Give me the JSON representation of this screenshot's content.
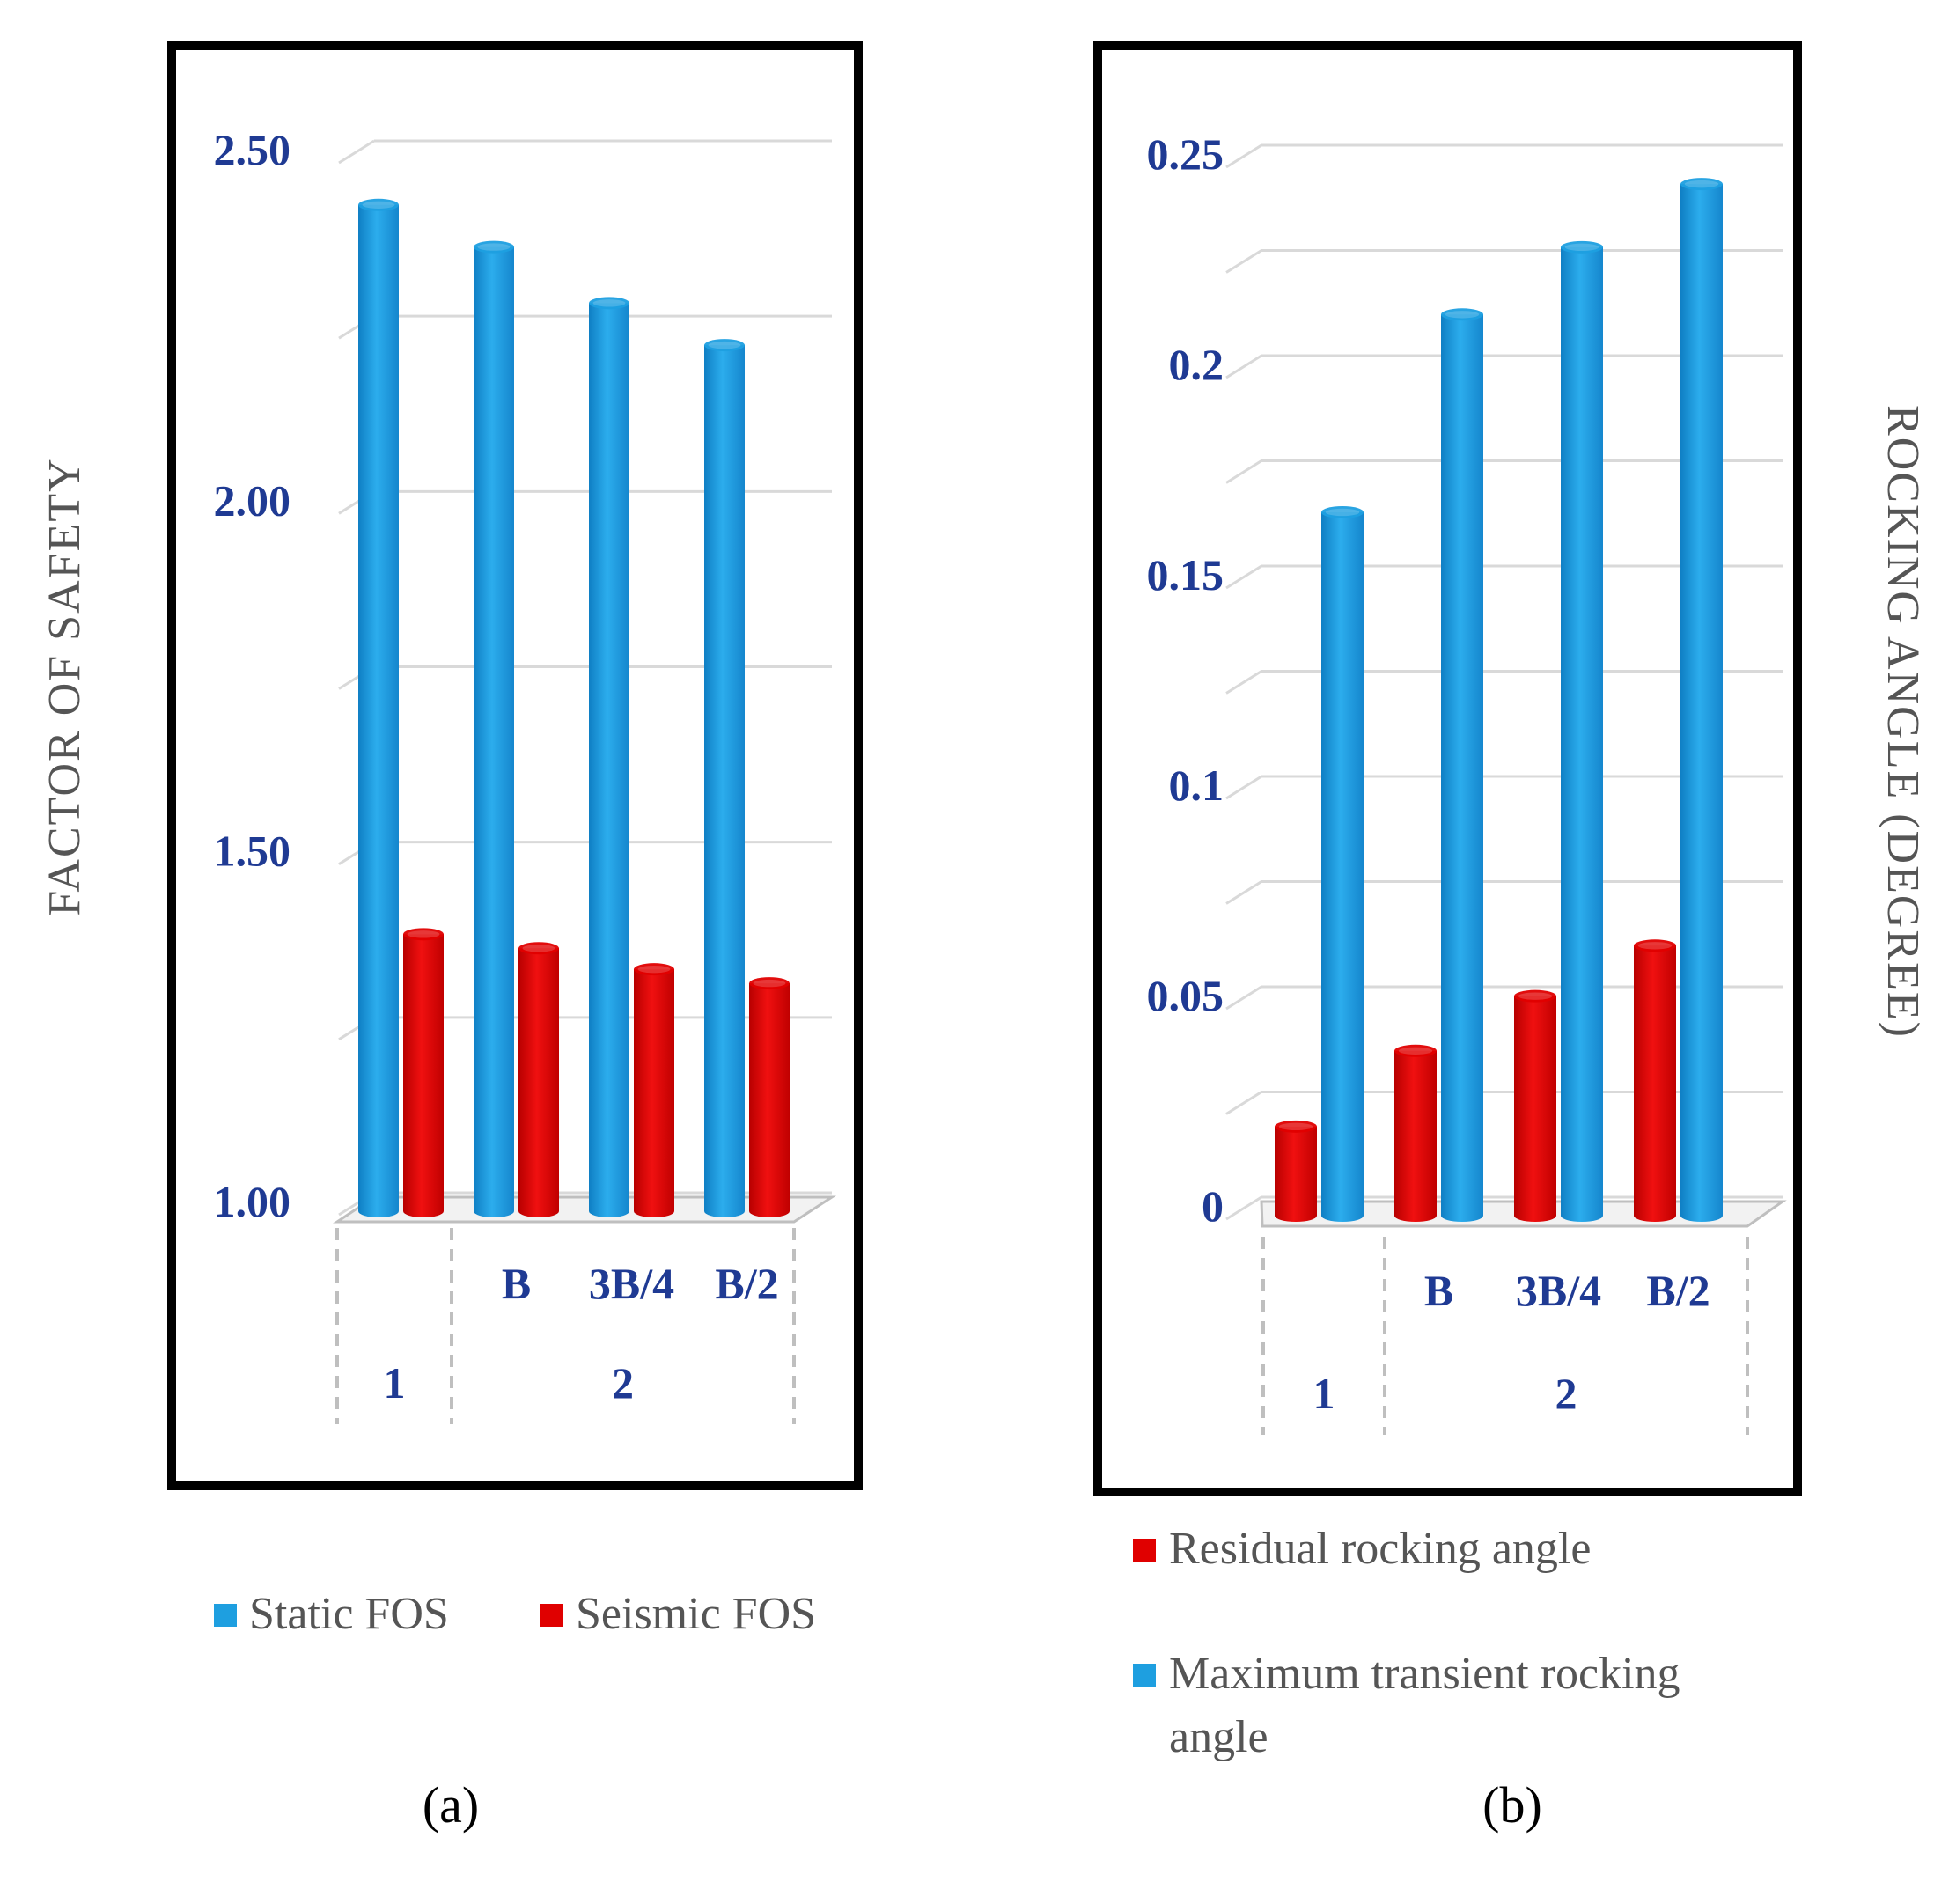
{
  "colors": {
    "static": "#1E9FE0",
    "seismic": "#E00000",
    "frame": "#000000",
    "grid": "#D9D9D9",
    "tick": "#1F3A93",
    "text": "#555555"
  },
  "chart_data": [
    {
      "type": "bar",
      "panel_label": "(a)",
      "ylabel": "FACTOR OF SAFETY",
      "ylim": [
        1.0,
        2.5
      ],
      "yticks": [
        "1.00",
        "1.50",
        "2.00",
        "2.50"
      ],
      "ytick_values": [
        1.0,
        1.5,
        2.0,
        2.5
      ],
      "categories": [
        "1",
        "B",
        "3B/4",
        "B/2"
      ],
      "category_groups": [
        {
          "label": "1",
          "members": [
            "1"
          ]
        },
        {
          "label": "2",
          "members": [
            "B",
            "3B/4",
            "B/2"
          ]
        }
      ],
      "series": [
        {
          "name": "Static FOS",
          "color": "#1E9FE0",
          "values": [
            2.44,
            2.38,
            2.3,
            2.24
          ]
        },
        {
          "name": "Seismic FOS",
          "color": "#E00000",
          "values": [
            1.4,
            1.38,
            1.35,
            1.33
          ]
        }
      ],
      "legend": [
        "Static FOS",
        "Seismic FOS"
      ]
    },
    {
      "type": "bar",
      "panel_label": "(b)",
      "ylabel": "ROCKING ANGLE (DEGREE)",
      "ylim": [
        0,
        0.25
      ],
      "yticks": [
        "0",
        "0.05",
        "0.1",
        "0.15",
        "0.2",
        "0.25"
      ],
      "ytick_values": [
        0,
        0.05,
        0.1,
        0.15,
        0.2,
        0.25
      ],
      "categories": [
        "1",
        "B",
        "3B/4",
        "B/2"
      ],
      "category_groups": [
        {
          "label": "1",
          "members": [
            "1"
          ]
        },
        {
          "label": "2",
          "members": [
            "B",
            "3B/4",
            "B/2"
          ]
        }
      ],
      "series": [
        {
          "name": "Residual rocking angle",
          "color": "#E00000",
          "values": [
            0.022,
            0.04,
            0.053,
            0.065
          ]
        },
        {
          "name": "Maximum transient rocking angle",
          "color": "#1E9FE0",
          "values": [
            0.168,
            0.215,
            0.231,
            0.246
          ]
        }
      ],
      "legend": [
        "Residual rocking angle",
        "Maximum transient rocking",
        "angle"
      ]
    }
  ]
}
